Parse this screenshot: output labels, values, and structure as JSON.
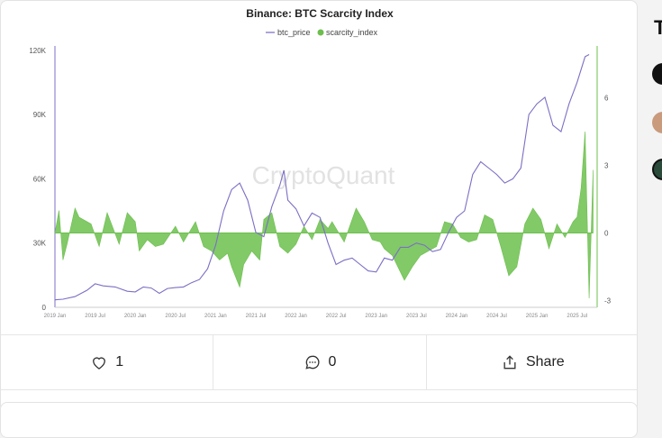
{
  "chart_data": {
    "type": "line",
    "title": "Binance: BTC Scarcity Index",
    "watermark": "CryptoQuant",
    "legend": {
      "placement": "top-center",
      "items": [
        "btc_price",
        "scarcity_index"
      ]
    },
    "x_ticks": [
      "2019 Jan",
      "2019 Jul",
      "2020 Jan",
      "2020 Jul",
      "2021 Jan",
      "2021 Jul",
      "2022 Jan",
      "2022 Jul",
      "2023 Jan",
      "2023 Jul",
      "2024 Jan",
      "2024 Jul",
      "2025 Jan",
      "2025 Jul"
    ],
    "y_left": {
      "ticks": [
        "0",
        "30K",
        "60K",
        "90K",
        "120K"
      ],
      "range": [
        0,
        122000
      ]
    },
    "y_right": {
      "ticks": [
        "-3",
        "0",
        "3",
        "6"
      ],
      "range": [
        -3.3,
        8.3
      ]
    },
    "series": [
      {
        "name": "btc_price",
        "axis": "left",
        "color": "#7b6fc4",
        "x": [
          2019.0,
          2019.1,
          2019.25,
          2019.4,
          2019.5,
          2019.6,
          2019.75,
          2019.9,
          2020.0,
          2020.1,
          2020.2,
          2020.3,
          2020.4,
          2020.5,
          2020.6,
          2020.7,
          2020.8,
          2020.9,
          2021.0,
          2021.1,
          2021.2,
          2021.3,
          2021.4,
          2021.5,
          2021.6,
          2021.7,
          2021.8,
          2021.85,
          2021.9,
          2022.0,
          2022.1,
          2022.2,
          2022.3,
          2022.4,
          2022.5,
          2022.6,
          2022.7,
          2022.8,
          2022.9,
          2023.0,
          2023.1,
          2023.2,
          2023.3,
          2023.4,
          2023.5,
          2023.6,
          2023.7,
          2023.8,
          2023.9,
          2024.0,
          2024.1,
          2024.2,
          2024.3,
          2024.4,
          2024.5,
          2024.6,
          2024.7,
          2024.8,
          2024.9,
          2025.0,
          2025.1,
          2025.2,
          2025.3,
          2025.4,
          2025.5,
          2025.6,
          2025.65
        ],
        "y": [
          3500,
          3800,
          5000,
          8000,
          11000,
          10000,
          9500,
          7500,
          7200,
          9500,
          9000,
          6500,
          8800,
          9200,
          9500,
          11500,
          13000,
          18000,
          29000,
          45000,
          55000,
          58000,
          50000,
          35000,
          33000,
          47000,
          57000,
          64000,
          50000,
          46000,
          38000,
          44000,
          42000,
          30000,
          20000,
          22000,
          23000,
          20000,
          17000,
          16500,
          23000,
          22000,
          28000,
          28000,
          30000,
          29000,
          26000,
          27000,
          35000,
          42000,
          45000,
          62000,
          68000,
          65000,
          62000,
          58000,
          60000,
          65000,
          90000,
          95000,
          98000,
          85000,
          82000,
          95000,
          105000,
          117000,
          118000
        ]
      },
      {
        "name": "scarcity_index",
        "axis": "right",
        "color": "#6cbf4e",
        "x": [
          2019.0,
          2019.05,
          2019.1,
          2019.15,
          2019.25,
          2019.3,
          2019.45,
          2019.55,
          2019.65,
          2019.8,
          2019.9,
          2020.0,
          2020.05,
          2020.15,
          2020.25,
          2020.35,
          2020.5,
          2020.6,
          2020.75,
          2020.85,
          2020.95,
          2021.05,
          2021.15,
          2021.2,
          2021.3,
          2021.35,
          2021.45,
          2021.55,
          2021.6,
          2021.7,
          2021.8,
          2021.9,
          2022.0,
          2022.1,
          2022.2,
          2022.3,
          2022.4,
          2022.45,
          2022.6,
          2022.75,
          2022.85,
          2022.95,
          2023.05,
          2023.1,
          2023.2,
          2023.35,
          2023.45,
          2023.55,
          2023.65,
          2023.75,
          2023.85,
          2023.95,
          2024.05,
          2024.15,
          2024.25,
          2024.35,
          2024.45,
          2024.55,
          2024.65,
          2024.75,
          2024.85,
          2024.95,
          2025.05,
          2025.15,
          2025.25,
          2025.35,
          2025.45,
          2025.5,
          2025.55,
          2025.6,
          2025.65,
          2025.7
        ],
        "y": [
          0,
          1.0,
          -1.2,
          -0.5,
          1.1,
          0.7,
          0.4,
          -0.6,
          0.9,
          -0.5,
          0.9,
          0.5,
          -0.8,
          -0.3,
          -0.6,
          -0.5,
          0.3,
          -0.4,
          0.5,
          -0.6,
          -0.8,
          -1.2,
          -0.9,
          -1.5,
          -2.4,
          -1.4,
          -0.8,
          -1.2,
          0.6,
          0.9,
          -0.6,
          -0.9,
          -0.5,
          0.3,
          -0.3,
          0.6,
          0.2,
          0.5,
          -0.4,
          1.1,
          0.5,
          -0.3,
          -0.4,
          -0.7,
          -1.0,
          -2.1,
          -1.5,
          -1.0,
          -0.8,
          -0.6,
          0.5,
          0.4,
          -0.2,
          -0.4,
          -0.3,
          0.8,
          0.6,
          -0.6,
          -1.9,
          -1.5,
          0.4,
          1.1,
          0.6,
          -0.7,
          0.4,
          -0.2,
          0.5,
          0.7,
          2.0,
          4.5,
          -2.9,
          2.8
        ]
      }
    ]
  },
  "actions": {
    "like_count": "1",
    "comment_count": "0",
    "share_label": "Share"
  },
  "sidebar": {
    "title_initial": "T"
  },
  "colors": {
    "accent_purple": "#7b6fc4",
    "accent_green": "#6cbf4e"
  }
}
